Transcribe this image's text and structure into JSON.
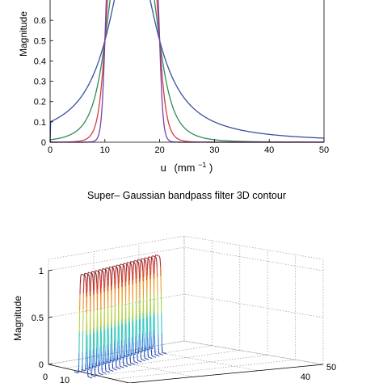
{
  "chart_data": [
    {
      "type": "line",
      "title": "",
      "xlabel_main": "u",
      "xlabel_unit": "(mm",
      "xlabel_exp": "−1",
      "xlabel_close": ")",
      "ylabel": "Magnitude",
      "xlim": [
        0,
        50
      ],
      "ylim": [
        0,
        0.7
      ],
      "xticks": [
        0,
        10,
        20,
        30,
        40,
        50
      ],
      "yticks": [
        0,
        0.1,
        0.2,
        0.3,
        0.4,
        0.5,
        0.6
      ],
      "xtick_labels": [
        "0",
        "10",
        "20",
        "30",
        "40",
        "50"
      ],
      "ytick_labels": [
        "0",
        "0.1",
        "0.2",
        "0.3",
        "0.4",
        "0.5",
        "0.6"
      ],
      "grid": false,
      "passband": [
        10,
        20
      ],
      "series": [
        {
          "order": 1,
          "color": "#3a4fa0",
          "values": [
            0,
            0.01,
            0.06,
            0.5,
            0.5,
            0.2,
            0.11,
            0.05
          ]
        },
        {
          "order": 2,
          "color": "#2e8b57",
          "values": [
            0,
            0.0,
            0.01,
            0.5,
            0.5,
            0.1,
            0.03,
            0.0
          ]
        },
        {
          "order": 4,
          "color": "#d23c3c",
          "values": [
            0,
            0.0,
            0.0,
            0.5,
            0.5,
            0.05,
            0.0,
            0.0
          ]
        },
        {
          "order": 8,
          "color": "#7a3fa8",
          "values": [
            0,
            0.0,
            0.0,
            0.5,
            0.5,
            0.01,
            0.0,
            0.0
          ]
        }
      ]
    },
    {
      "type": "surface3d",
      "title": "Super– Gaussian bandpass filter 3D contour",
      "zlabel": "Magnitude",
      "zticks": [
        "0",
        "0.5",
        "1"
      ],
      "xtick_labels_visible": [
        "0",
        "10"
      ],
      "ytick_labels_visible": [
        "40",
        "50"
      ],
      "grid": true,
      "colormap": [
        "#1e3aa8",
        "#2f8fdc",
        "#2fc6c6",
        "#7ccf5a",
        "#e8d23a",
        "#ee8a2a",
        "#c8282a",
        "#7a1a1a"
      ]
    }
  ]
}
